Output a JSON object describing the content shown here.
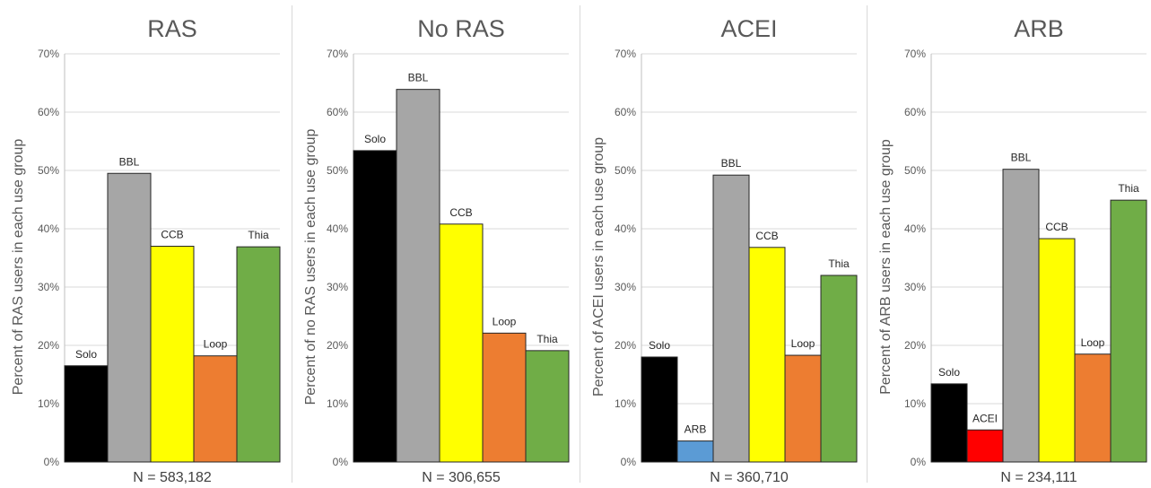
{
  "chart_data": [
    {
      "type": "bar",
      "title": "RAS",
      "ylabel": "Percent of RAS users in each use group",
      "xlabel": "N = 583,182",
      "ylim": [
        0,
        70
      ],
      "yticks": [
        "0%",
        "10%",
        "20%",
        "30%",
        "40%",
        "50%",
        "60%",
        "70%"
      ],
      "grid": true,
      "categories": [
        "Solo",
        "BBL",
        "CCB",
        "Loop",
        "Thia"
      ],
      "values": [
        16.5,
        49.5,
        37.0,
        18.2,
        36.9
      ],
      "colors": [
        "#000000",
        "#a6a6a6",
        "#ffff00",
        "#ed7d31",
        "#70ad47"
      ]
    },
    {
      "type": "bar",
      "title": "No RAS",
      "ylabel": "Percent of no RAS users in each use group",
      "xlabel": "N = 306,655",
      "ylim": [
        0,
        70
      ],
      "yticks": [
        "0%",
        "10%",
        "20%",
        "30%",
        "40%",
        "50%",
        "60%",
        "70%"
      ],
      "grid": true,
      "categories": [
        "Solo",
        "BBL",
        "CCB",
        "Loop",
        "Thia"
      ],
      "values": [
        53.4,
        63.9,
        40.8,
        22.1,
        19.1
      ],
      "colors": [
        "#000000",
        "#a6a6a6",
        "#ffff00",
        "#ed7d31",
        "#70ad47"
      ]
    },
    {
      "type": "bar",
      "title": "ACEI",
      "ylabel": "Percent of ACEI users in each use group",
      "xlabel": "N = 360,710",
      "ylim": [
        0,
        70
      ],
      "yticks": [
        "0%",
        "10%",
        "20%",
        "30%",
        "40%",
        "50%",
        "60%",
        "70%"
      ],
      "grid": true,
      "categories": [
        "Solo",
        "ARB",
        "BBL",
        "CCB",
        "Loop",
        "Thia"
      ],
      "values": [
        18.0,
        3.6,
        49.2,
        36.8,
        18.3,
        32.0
      ],
      "colors": [
        "#000000",
        "#5b9bd5",
        "#a6a6a6",
        "#ffff00",
        "#ed7d31",
        "#70ad47"
      ]
    },
    {
      "type": "bar",
      "title": "ARB",
      "ylabel": "Percent of ARB users in each use group",
      "xlabel": "N = 234,111",
      "ylim": [
        0,
        70
      ],
      "yticks": [
        "0%",
        "10%",
        "20%",
        "30%",
        "40%",
        "50%",
        "60%",
        "70%"
      ],
      "grid": true,
      "categories": [
        "Solo",
        "ACEI",
        "BBL",
        "CCB",
        "Loop",
        "Thia"
      ],
      "values": [
        13.4,
        5.5,
        50.2,
        38.3,
        18.5,
        44.9
      ],
      "colors": [
        "#000000",
        "#ff0000",
        "#a6a6a6",
        "#ffff00",
        "#ed7d31",
        "#70ad47"
      ]
    }
  ]
}
